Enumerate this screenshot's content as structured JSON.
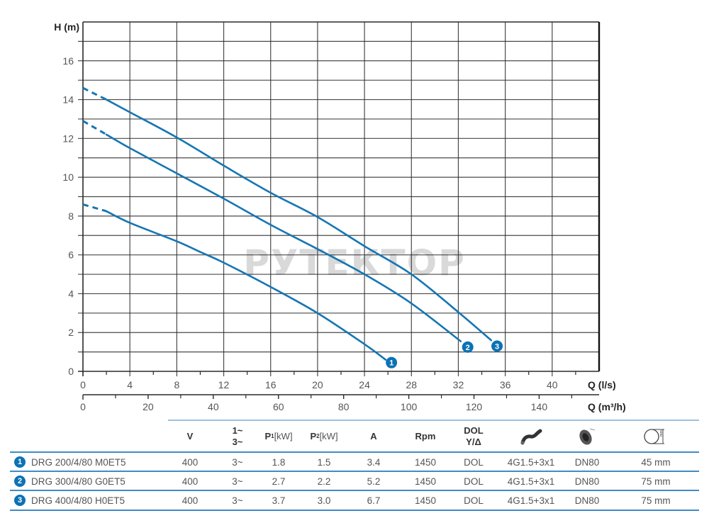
{
  "chart_data": {
    "type": "line",
    "title": "",
    "xlabel": "Q (l/s)",
    "x2label": "Q (m³/h)",
    "ylabel": "H (m)",
    "xlim": [
      0,
      44
    ],
    "ylim": [
      0,
      18
    ],
    "grid": true,
    "x_ticks": [
      0,
      4,
      8,
      12,
      16,
      20,
      24,
      28,
      32,
      36,
      40
    ],
    "x_minor_ticks": [
      2,
      6,
      10,
      14,
      18,
      22,
      26,
      30,
      34,
      38,
      42
    ],
    "x2_ticks": [
      0,
      20,
      40,
      60,
      80,
      100,
      120,
      140
    ],
    "x2_minor_ticks": [
      10,
      30,
      50,
      70,
      90,
      110,
      130,
      150
    ],
    "y_ticks": [
      0,
      2,
      4,
      6,
      8,
      10,
      12,
      14,
      16
    ],
    "y_grid": [
      1,
      2,
      3,
      4,
      5,
      6,
      7,
      8,
      9,
      10,
      11,
      12,
      13,
      14,
      15,
      16,
      17
    ],
    "watermark": "РУТЕКТОР",
    "series": [
      {
        "name": "DRG 200/4/80 M0ET5",
        "badge": "1",
        "dashed": [
          [
            0,
            8.6
          ],
          [
            2,
            8.25
          ]
        ],
        "points": [
          [
            2,
            8.25
          ],
          [
            4,
            7.65
          ],
          [
            8,
            6.7
          ],
          [
            10,
            6.15
          ],
          [
            12,
            5.6
          ],
          [
            16,
            4.35
          ],
          [
            20,
            3.0
          ],
          [
            24,
            1.4
          ],
          [
            25.8,
            0.6
          ]
        ],
        "badge_pos": [
          26.3,
          0.45
        ]
      },
      {
        "name": "DRG 300/4/80 G0ET5",
        "badge": "2",
        "dashed": [
          [
            0,
            12.9
          ],
          [
            2,
            12.2
          ]
        ],
        "points": [
          [
            2,
            12.2
          ],
          [
            4,
            11.5
          ],
          [
            8,
            10.2
          ],
          [
            12,
            8.9
          ],
          [
            16,
            7.55
          ],
          [
            20,
            6.3
          ],
          [
            24,
            5.0
          ],
          [
            28,
            3.5
          ],
          [
            32.2,
            1.55
          ]
        ],
        "badge_pos": [
          32.8,
          1.25
        ]
      },
      {
        "name": "DRG 400/4/80 H0ET5",
        "badge": "3",
        "dashed": [
          [
            0,
            14.6
          ],
          [
            2,
            14.0
          ]
        ],
        "points": [
          [
            2,
            14.0
          ],
          [
            4,
            13.35
          ],
          [
            8,
            12.05
          ],
          [
            12,
            10.6
          ],
          [
            16,
            9.2
          ],
          [
            20,
            7.95
          ],
          [
            24,
            6.45
          ],
          [
            28,
            5.0
          ],
          [
            32,
            3.05
          ],
          [
            34.8,
            1.6
          ]
        ],
        "badge_pos": [
          35.3,
          1.3
        ]
      }
    ]
  },
  "table": {
    "headers": {
      "v": "V",
      "phase_1": "1~",
      "phase_3": "3~",
      "p1": "P",
      "p1_sub": "1",
      "p1_unit": " [kW]",
      "p2": "P",
      "p2_sub": "2",
      "p2_unit": " [kW]",
      "a": "A",
      "rpm": "Rpm",
      "start_1": "DOL",
      "start_2": "Y/Δ",
      "cable_icon": "cable-icon",
      "flange_icon": "flange-outlet-icon",
      "diameter_icon": "free-passage-diameter-icon"
    },
    "rows": [
      {
        "badge": "1",
        "model": "DRG 200/4/80 M0ET5",
        "v": "400",
        "phase": "3~",
        "p1": "1.8",
        "p2": "1.5",
        "a": "3.4",
        "rpm": "1450",
        "start": "DOL",
        "cable": "4G1.5+3x1",
        "flange": "DN80",
        "passage": "45 mm"
      },
      {
        "badge": "2",
        "model": "DRG 300/4/80 G0ET5",
        "v": "400",
        "phase": "3~",
        "p1": "2.7",
        "p2": "2.2",
        "a": "5.2",
        "rpm": "1450",
        "start": "DOL",
        "cable": "4G1.5+3x1",
        "flange": "DN80",
        "passage": "75 mm"
      },
      {
        "badge": "3",
        "model": "DRG 400/4/80 H0ET5",
        "v": "400",
        "phase": "3~",
        "p1": "3.7",
        "p2": "3.0",
        "a": "6.7",
        "rpm": "1450",
        "start": "DOL",
        "cable": "4G1.5+3x1",
        "flange": "DN80",
        "passage": "75 mm"
      }
    ]
  },
  "colors": {
    "curve": "#1676b3",
    "badge": "#0b72b5",
    "grid": "#2a2a2a",
    "table_line": "#3f8cc3",
    "table_header_line": "#9cc3de"
  }
}
